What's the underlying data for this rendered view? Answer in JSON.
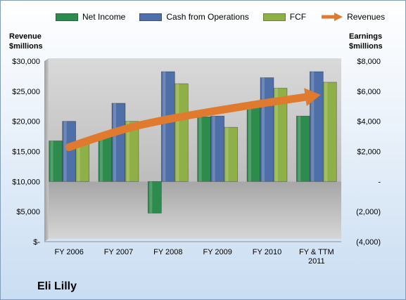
{
  "chart_data": {
    "type": "bar",
    "title": "",
    "company": "Eli Lilly",
    "categories": [
      "FY 2006",
      "FY 2007",
      "FY 2008",
      "FY 2009",
      "FY 2010",
      "FY & TTM 2011"
    ],
    "category_lines": [
      [
        "FY 2006"
      ],
      [
        "FY 2007"
      ],
      [
        "FY 2008"
      ],
      [
        "FY 2009"
      ],
      [
        "FY 2010"
      ],
      [
        "FY & TTM",
        "2011"
      ]
    ],
    "left_axis": {
      "title_lines": [
        "Revenue",
        "$millions"
      ],
      "range": [
        0,
        30000
      ],
      "ticks": [
        0,
        5000,
        10000,
        15000,
        20000,
        25000,
        30000
      ],
      "tick_labels": [
        "$-",
        "$5,000",
        "$10,000",
        "$15,000",
        "$20,000",
        "$25,000",
        "$30,000"
      ]
    },
    "right_axis": {
      "title_lines": [
        "Earnings",
        "$millions"
      ],
      "range": [
        -4000,
        8000
      ],
      "ticks": [
        -4000,
        -2000,
        0,
        2000,
        4000,
        6000,
        8000
      ],
      "tick_labels": [
        "(4,000)",
        "(2,000)",
        "-",
        "$2,000",
        "$4,000",
        "$6,000",
        "$8,000"
      ]
    },
    "bar_series": [
      {
        "name": "Net Income",
        "color": "#2e8b4e",
        "axis": "right",
        "values": [
          2700,
          2950,
          -2100,
          4300,
          5100,
          4350
        ]
      },
      {
        "name": "Cash from Operations",
        "color": "#4f6fa8",
        "axis": "right",
        "values": [
          4000,
          5200,
          7300,
          4350,
          6900,
          7300
        ]
      },
      {
        "name": "FCF",
        "color": "#8fb046",
        "axis": "right",
        "values": [
          2600,
          4000,
          6500,
          3600,
          6200,
          6600
        ]
      }
    ],
    "line_series": [
      {
        "name": "Revenues",
        "color": "#e07a2e",
        "axis": "left",
        "arrow": true,
        "values": [
          15700,
          18600,
          20400,
          21800,
          23100,
          24300
        ]
      }
    ],
    "grid": false,
    "legend_position": "top"
  }
}
